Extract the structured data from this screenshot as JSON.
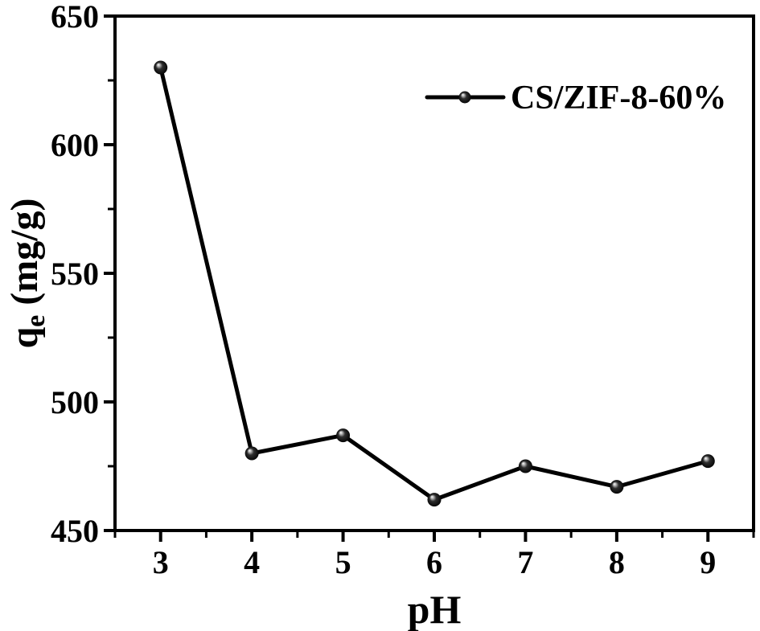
{
  "chart_data": {
    "type": "line",
    "title": "",
    "xlabel": "pH",
    "ylabel": {
      "base": "q",
      "sub": "e",
      "rest": " (mg/g)"
    },
    "x": [
      3,
      4,
      5,
      6,
      7,
      8,
      9
    ],
    "series": [
      {
        "name": "CS/ZIF-8-60%",
        "values": [
          630,
          480,
          487,
          462,
          475,
          467,
          477
        ]
      }
    ],
    "xlim": [
      2.5,
      9.5
    ],
    "ylim": [
      450,
      650
    ],
    "x_major_ticks": [
      3,
      4,
      5,
      6,
      7,
      8,
      9
    ],
    "x_minor_ticks": [
      2.5,
      3.5,
      4.5,
      5.5,
      6.5,
      7.5,
      8.5,
      9.5
    ],
    "y_major_ticks": [
      450,
      500,
      550,
      600,
      650
    ],
    "y_minor_ticks": [
      475,
      525,
      575,
      625
    ],
    "grid": false,
    "legend_position": "upper right",
    "marker": "sphere",
    "colors": {
      "line": "#000000",
      "marker": "#000000",
      "axis": "#000000",
      "text": "#000000",
      "background": "#ffffff"
    }
  }
}
